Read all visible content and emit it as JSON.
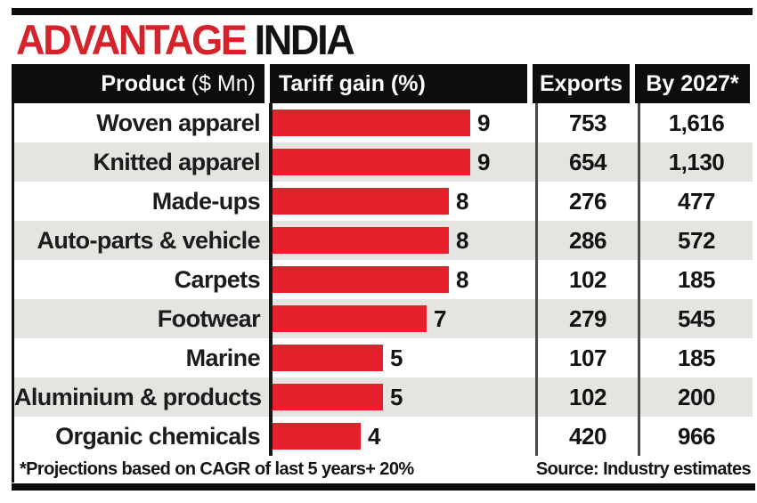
{
  "title": {
    "part1": "ADVANTAGE",
    "part2": " INDIA"
  },
  "header": {
    "product_bold": "Product",
    "product_rest": " ($ Mn)",
    "tariff": "Tariff gain (%)",
    "exports": "Exports",
    "by2027": "By 2027*"
  },
  "rows": [
    {
      "product": "Woven apparel",
      "tariff": 9,
      "exports": "753",
      "by2027": "1,616"
    },
    {
      "product": "Knitted apparel",
      "tariff": 9,
      "exports": "654",
      "by2027": "1,130"
    },
    {
      "product": "Made-ups",
      "tariff": 8,
      "exports": "276",
      "by2027": "477"
    },
    {
      "product": "Auto-parts & vehicle",
      "tariff": 8,
      "exports": "286",
      "by2027": "572"
    },
    {
      "product": "Carpets",
      "tariff": 8,
      "exports": "102",
      "by2027": "185"
    },
    {
      "product": "Footwear",
      "tariff": 7,
      "exports": "279",
      "by2027": "545"
    },
    {
      "product": "Marine",
      "tariff": 5,
      "exports": "107",
      "by2027": "185"
    },
    {
      "product": "Aluminium & products",
      "tariff": 5,
      "exports": "102",
      "by2027": "200"
    },
    {
      "product": "Organic chemicals",
      "tariff": 4,
      "exports": "420",
      "by2027": "966"
    }
  ],
  "footer": {
    "note": "*Projections based on CAGR of last 5 years+ 20%",
    "source": "Source: Industry estimates"
  },
  "colors": {
    "bar": "#e6212b",
    "title_accent": "#d5232c",
    "header_bg": "#0e0d0b",
    "row_alt": "#e6e4e1"
  },
  "chart_data": {
    "type": "bar",
    "title": "ADVANTAGE INDIA",
    "categories": [
      "Woven apparel",
      "Knitted apparel",
      "Made-ups",
      "Auto-parts & vehicle",
      "Carpets",
      "Footwear",
      "Marine",
      "Aluminium & products",
      "Organic chemicals"
    ],
    "series": [
      {
        "name": "Tariff gain (%)",
        "values": [
          9,
          9,
          8,
          8,
          8,
          7,
          5,
          5,
          4
        ]
      },
      {
        "name": "Exports",
        "values": [
          753,
          654,
          276,
          286,
          102,
          279,
          107,
          102,
          420
        ]
      },
      {
        "name": "By 2027*",
        "values": [
          1616,
          1130,
          477,
          572,
          185,
          545,
          185,
          200,
          966
        ]
      }
    ],
    "xlabel": "Tariff gain (%)",
    "ylabel": "Product ($ Mn)",
    "xlim": [
      0,
      9
    ],
    "orientation": "horizontal",
    "grid": false,
    "legend": "none",
    "bar_color": "#e6212b",
    "footnote": "*Projections based on CAGR of last 5 years+ 20%",
    "source": "Source: Industry estimates"
  }
}
